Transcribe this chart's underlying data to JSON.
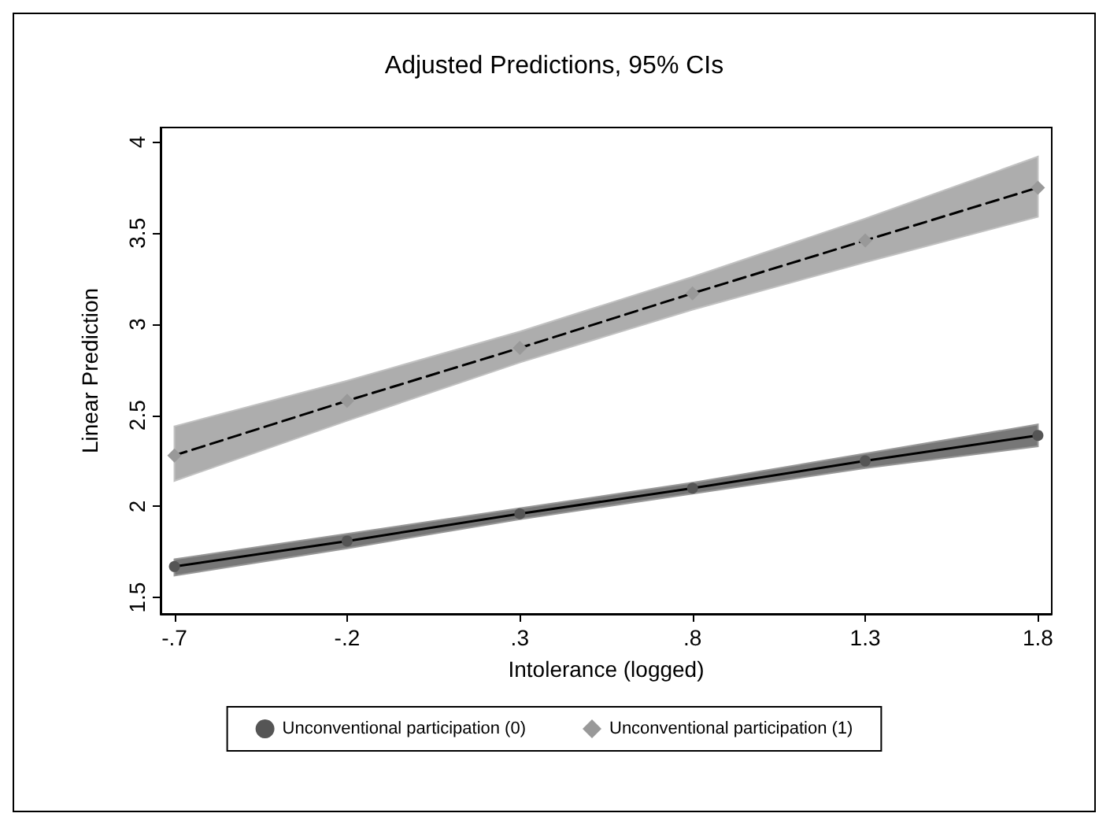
{
  "chart_data": {
    "type": "line",
    "title": "Adjusted Predictions, 95% CIs",
    "xlabel": "Intolerance (logged)",
    "ylabel": "Linear Prediction",
    "x": [
      -0.7,
      -0.2,
      0.3,
      0.8,
      1.3,
      1.8
    ],
    "series": [
      {
        "name": "Unconventional participation (0)",
        "color": "#555555",
        "marker": "circle",
        "line_style": "solid",
        "values": [
          1.67,
          1.81,
          1.96,
          2.1,
          2.25,
          2.39
        ],
        "lower": [
          1.62,
          1.77,
          1.93,
          2.07,
          2.21,
          2.33
        ],
        "upper": [
          1.71,
          1.85,
          1.99,
          2.13,
          2.29,
          2.45
        ]
      },
      {
        "name": "Unconventional participation (1)",
        "color": "#999999",
        "marker": "diamond",
        "line_style": "dashed",
        "values": [
          2.28,
          2.58,
          2.87,
          3.17,
          3.46,
          3.75
        ],
        "lower": [
          2.14,
          2.47,
          2.79,
          3.08,
          3.34,
          3.59
        ],
        "upper": [
          2.44,
          2.69,
          2.96,
          3.26,
          3.58,
          3.92
        ]
      }
    ],
    "xlim": [
      -0.74,
      1.84
    ],
    "xticks": [
      {
        "value": -0.7,
        "label": "-.7"
      },
      {
        "value": -0.2,
        "label": "-.2"
      },
      {
        "value": 0.3,
        "label": ".3"
      },
      {
        "value": 0.8,
        "label": ".8"
      },
      {
        "value": 1.3,
        "label": "1.3"
      },
      {
        "value": 1.8,
        "label": "1.8"
      }
    ],
    "ylim": [
      1.41,
      4.08
    ],
    "yticks": [
      1.5,
      2,
      2.5,
      3,
      3.5,
      4
    ],
    "grid": false,
    "legend": "bottom"
  }
}
